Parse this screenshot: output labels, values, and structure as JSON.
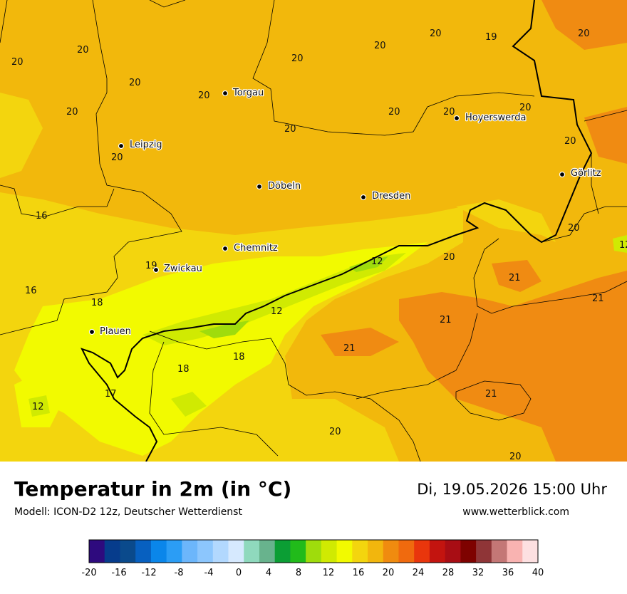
{
  "map": {
    "values": [
      {
        "t": "20"
      },
      {
        "t": "20"
      },
      {
        "t": "20"
      },
      {
        "t": "20"
      },
      {
        "t": "20"
      },
      {
        "t": "19"
      },
      {
        "t": "20"
      },
      {
        "t": "20"
      },
      {
        "t": "20"
      },
      {
        "t": "20"
      },
      {
        "t": "20"
      },
      {
        "t": "20"
      },
      {
        "t": "20"
      },
      {
        "t": "20"
      },
      {
        "t": "20"
      },
      {
        "t": "20"
      },
      {
        "t": "16"
      },
      {
        "t": "20"
      },
      {
        "t": "12"
      },
      {
        "t": "12"
      },
      {
        "t": "20"
      },
      {
        "t": "19"
      },
      {
        "t": "21"
      },
      {
        "t": "16"
      },
      {
        "t": "21"
      },
      {
        "t": "18"
      },
      {
        "t": "12"
      },
      {
        "t": "21"
      },
      {
        "t": "21"
      },
      {
        "t": "18"
      },
      {
        "t": "18"
      },
      {
        "t": "17"
      },
      {
        "t": "21"
      },
      {
        "t": "12"
      },
      {
        "t": "20"
      },
      {
        "t": "20"
      }
    ],
    "cities": [
      {
        "name": "Torgau"
      },
      {
        "name": "Hoyerswerda"
      },
      {
        "name": "Leipzig"
      },
      {
        "name": "Görlitz"
      },
      {
        "name": "Döbeln"
      },
      {
        "name": "Dresden"
      },
      {
        "name": "Chemnitz"
      },
      {
        "name": "Zwickau"
      },
      {
        "name": "Plauen"
      }
    ]
  },
  "header": {
    "title": "Temperatur in 2m (in °C)",
    "model": "Modell: ICON-D2 12z, Deutscher Wetterdienst",
    "datetime": "Di, 19.05.2026 15:00 Uhr",
    "website": "www.wetterblick.com"
  },
  "legend": {
    "ticks": [
      "-20",
      "-16",
      "-12",
      "-8",
      "-4",
      "0",
      "4",
      "8",
      "12",
      "16",
      "20",
      "24",
      "28",
      "32",
      "36",
      "40"
    ],
    "colors": [
      "#2e0a7e",
      "#063c8c",
      "#0a4a8c",
      "#0760c0",
      "#0a86ea",
      "#2b9df5",
      "#6cb6fb",
      "#8cc6fd",
      "#b2d8fe",
      "#d6e9fe",
      "#8fd9bd",
      "#68b38d",
      "#0b9e34",
      "#21bb1a",
      "#9fdc0c",
      "#d0ea02",
      "#f2fa00",
      "#f3d50e",
      "#f2b60d",
      "#f08b0f",
      "#f06a0e",
      "#e9360c",
      "#c3140f",
      "#a80d14",
      "#7e0200",
      "#8f3537",
      "#c47776",
      "#f9b3b1",
      "#fde0e1"
    ]
  },
  "colors": {
    "base": "#f2b80c",
    "warm": "#f08b12",
    "mild": "#f3d50e",
    "cool": "#f2fa00",
    "cold": "#d0ea02",
    "colder": "#9fdc0c"
  }
}
